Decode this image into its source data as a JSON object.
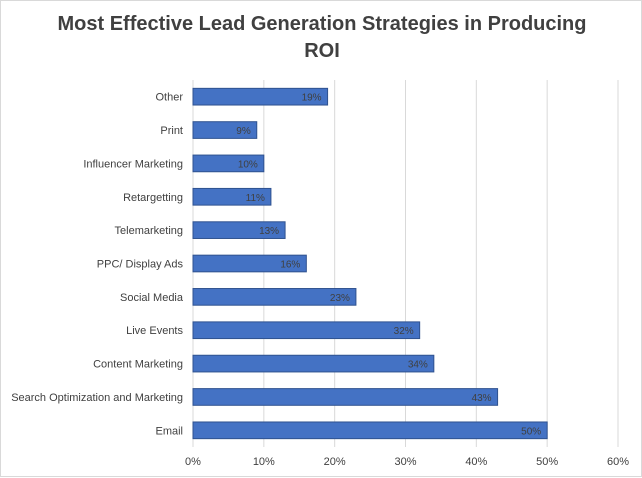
{
  "chart_data": {
    "type": "bar",
    "orientation": "horizontal",
    "title": "Most Effective Lead Generation Strategies in Producing ROI",
    "xlabel": "",
    "ylabel": "",
    "xlim": [
      0,
      60
    ],
    "ticks": [
      0,
      10,
      20,
      30,
      40,
      50,
      60
    ],
    "tick_labels": [
      "0%",
      "10%",
      "20%",
      "30%",
      "40%",
      "50%",
      "60%"
    ],
    "grid": true,
    "legend": "none",
    "bar_color": "#4472c4",
    "categories": [
      "Other",
      "Print",
      "Influencer Marketing",
      "Retargetting",
      "Telemarketing",
      "PPC/ Display Ads",
      "Social Media",
      "Live Events",
      "Content Marketing",
      "Search Optimization and Marketing",
      "Email"
    ],
    "values": [
      19,
      9,
      10,
      11,
      13,
      16,
      23,
      32,
      34,
      43,
      50
    ],
    "value_labels": [
      "19%",
      "9%",
      "10%",
      "11%",
      "13%",
      "16%",
      "23%",
      "32%",
      "34%",
      "43%",
      "50%"
    ]
  }
}
